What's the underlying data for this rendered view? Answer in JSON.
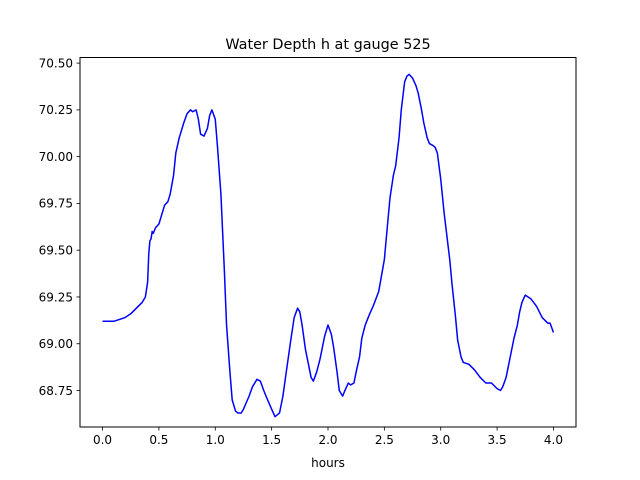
{
  "chart_data": {
    "type": "line",
    "title": "Water Depth h at gauge 525",
    "xlabel": "hours",
    "ylabel": "",
    "xlim": [
      -0.2,
      4.2
    ],
    "ylim": [
      68.555,
      70.53
    ],
    "xticks": [
      0.0,
      0.5,
      1.0,
      1.5,
      2.0,
      2.5,
      3.0,
      3.5,
      4.0
    ],
    "xtick_labels": [
      "0.0",
      "0.5",
      "1.0",
      "1.5",
      "2.0",
      "2.5",
      "3.0",
      "3.5",
      "4.0"
    ],
    "yticks": [
      68.75,
      69.0,
      69.25,
      69.5,
      69.75,
      70.0,
      70.25,
      70.5
    ],
    "ytick_labels": [
      "68.75",
      "69.00",
      "69.25",
      "69.50",
      "69.75",
      "70.00",
      "70.25",
      "70.50"
    ],
    "grid": false,
    "series": [
      {
        "color": "#0000ff",
        "x": [
          0.0,
          0.1,
          0.2,
          0.25,
          0.3,
          0.35,
          0.38,
          0.4,
          0.41,
          0.42,
          0.43,
          0.44,
          0.45,
          0.47,
          0.5,
          0.52,
          0.55,
          0.58,
          0.6,
          0.63,
          0.65,
          0.68,
          0.72,
          0.75,
          0.78,
          0.8,
          0.83,
          0.85,
          0.87,
          0.9,
          0.93,
          0.95,
          0.97,
          1.0,
          1.02,
          1.05,
          1.08,
          1.1,
          1.13,
          1.15,
          1.18,
          1.2,
          1.23,
          1.25,
          1.3,
          1.33,
          1.37,
          1.4,
          1.43,
          1.45,
          1.5,
          1.53,
          1.57,
          1.6,
          1.63,
          1.67,
          1.7,
          1.73,
          1.75,
          1.77,
          1.8,
          1.83,
          1.85,
          1.87,
          1.9,
          1.93,
          1.97,
          2.0,
          2.03,
          2.05,
          2.08,
          2.1,
          2.13,
          2.15,
          2.18,
          2.2,
          2.23,
          2.25,
          2.28,
          2.3,
          2.33,
          2.37,
          2.4,
          2.45,
          2.5,
          2.53,
          2.55,
          2.58,
          2.6,
          2.63,
          2.65,
          2.68,
          2.7,
          2.72,
          2.75,
          2.78,
          2.8,
          2.83,
          2.85,
          2.88,
          2.9,
          2.93,
          2.95,
          2.97,
          3.0,
          3.03,
          3.05,
          3.08,
          3.1,
          3.13,
          3.15,
          3.18,
          3.2,
          3.25,
          3.3,
          3.35,
          3.4,
          3.45,
          3.5,
          3.53,
          3.55,
          3.58,
          3.6,
          3.63,
          3.65,
          3.68,
          3.7,
          3.72,
          3.75,
          3.8,
          3.85,
          3.9,
          3.95,
          3.97,
          4.0
        ],
        "y": [
          69.12,
          69.12,
          69.14,
          69.16,
          69.19,
          69.22,
          69.25,
          69.33,
          69.48,
          69.55,
          69.56,
          69.6,
          69.59,
          69.62,
          69.64,
          69.68,
          69.74,
          69.76,
          69.8,
          69.9,
          70.02,
          70.1,
          70.18,
          70.23,
          70.25,
          70.24,
          70.25,
          70.2,
          70.12,
          70.11,
          70.15,
          70.22,
          70.25,
          70.2,
          70.05,
          69.8,
          69.4,
          69.1,
          68.85,
          68.7,
          68.64,
          68.63,
          68.63,
          68.65,
          68.72,
          68.77,
          68.81,
          68.8,
          68.75,
          68.72,
          68.65,
          68.61,
          68.63,
          68.72,
          68.85,
          69.02,
          69.14,
          69.19,
          69.17,
          69.1,
          68.97,
          68.88,
          68.82,
          68.8,
          68.85,
          68.92,
          69.04,
          69.1,
          69.05,
          68.98,
          68.85,
          68.75,
          68.72,
          68.75,
          68.79,
          68.78,
          68.79,
          68.85,
          68.93,
          69.03,
          69.1,
          69.16,
          69.2,
          69.28,
          69.45,
          69.65,
          69.78,
          69.9,
          69.95,
          70.1,
          70.25,
          70.4,
          70.43,
          70.44,
          70.42,
          70.38,
          70.34,
          70.25,
          70.18,
          70.1,
          70.07,
          70.06,
          70.05,
          70.02,
          69.88,
          69.7,
          69.6,
          69.45,
          69.32,
          69.15,
          69.02,
          68.93,
          68.9,
          68.89,
          68.86,
          68.82,
          68.79,
          68.79,
          68.76,
          68.75,
          68.77,
          68.82,
          68.88,
          68.97,
          69.03,
          69.1,
          69.17,
          69.22,
          69.26,
          69.24,
          69.2,
          69.14,
          69.11,
          69.11,
          69.06
        ]
      }
    ]
  }
}
